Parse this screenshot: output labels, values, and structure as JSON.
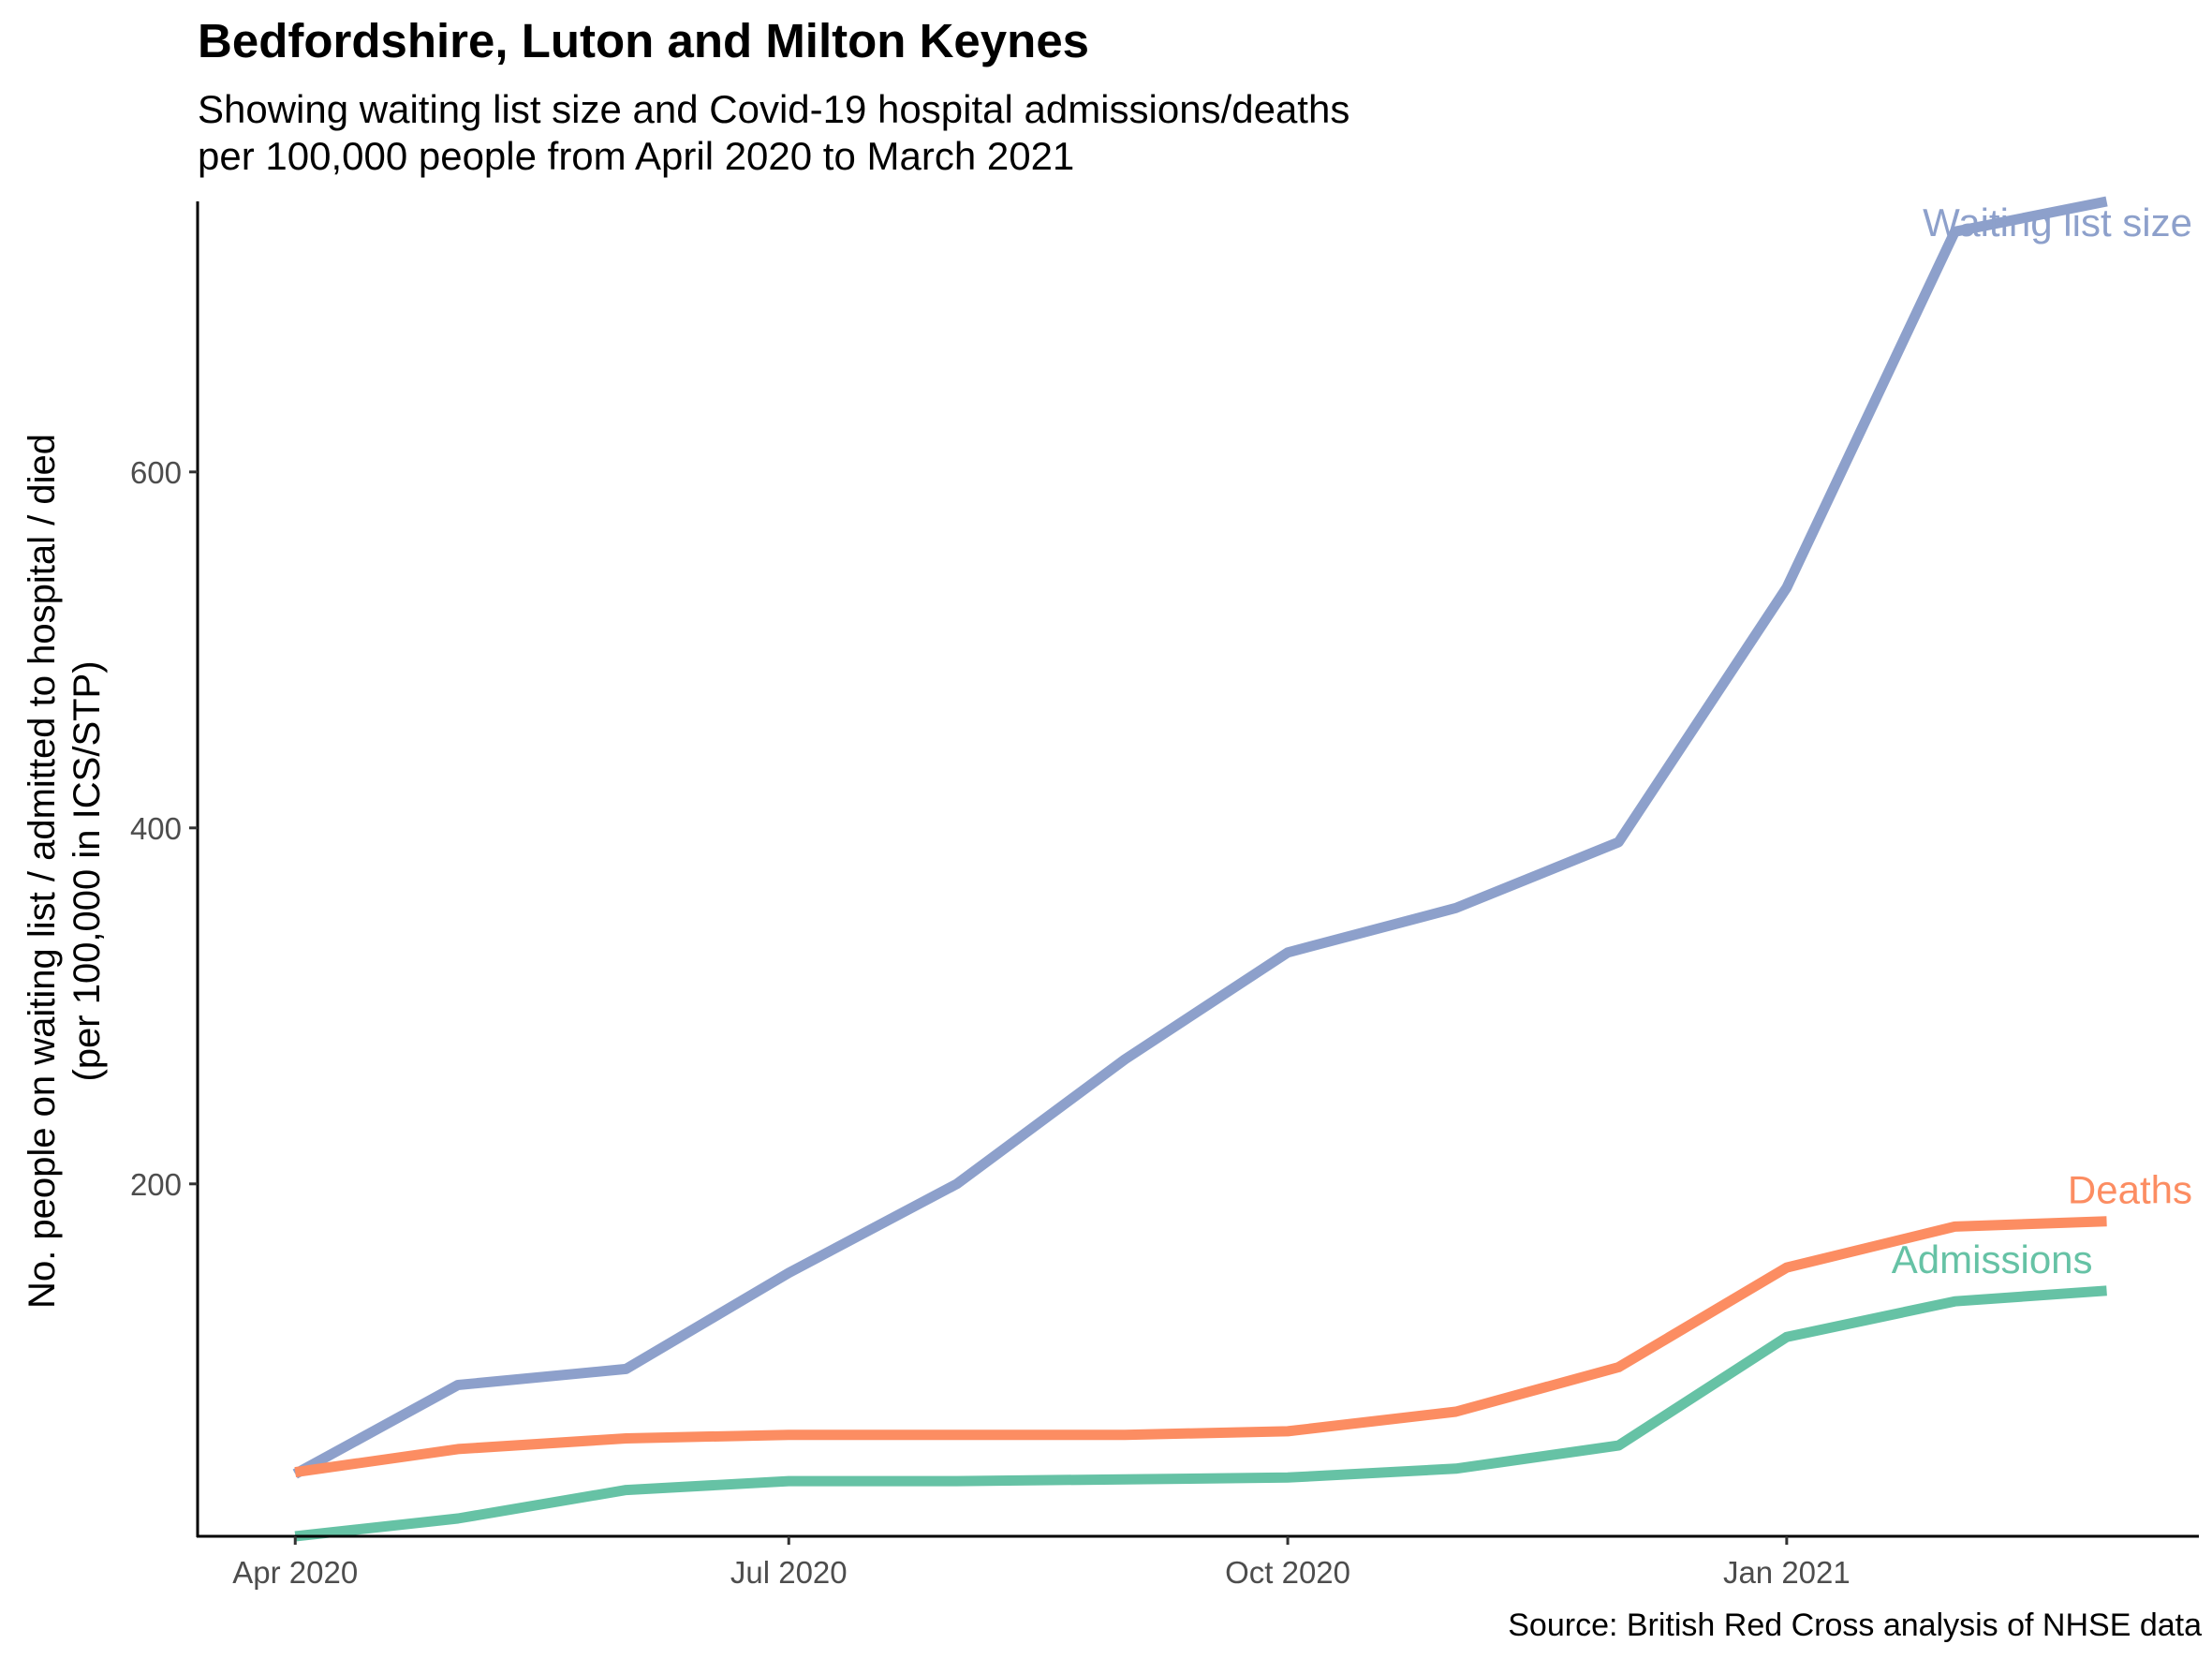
{
  "chart_data": {
    "type": "line",
    "title": "Bedfordshire, Luton and Milton Keynes",
    "subtitle": [
      "Showing waiting list size and Covid-19 hospital admissions/deaths",
      "per 100,000 people from April 2020 to March 2021"
    ],
    "caption": "Source: British Red Cross analysis of NHSE data",
    "ylabel": [
      "No. people on waiting list / admitted to hospital / died",
      "(per 100,000 in ICS/STP)"
    ],
    "xlabel": "",
    "x": [
      "2020-04-01",
      "2020-05-01",
      "2020-06-01",
      "2020-07-01",
      "2020-08-01",
      "2020-09-01",
      "2020-10-01",
      "2020-11-01",
      "2020-12-01",
      "2021-01-01",
      "2021-02-01",
      "2021-03-01"
    ],
    "x_ticks": [
      {
        "date": "2020-04-01",
        "label": "Apr 2020"
      },
      {
        "date": "2020-07-01",
        "label": "Jul 2020"
      },
      {
        "date": "2020-10-01",
        "label": "Oct 2020"
      },
      {
        "date": "2021-01-01",
        "label": "Jan 2021"
      }
    ],
    "y_ticks": [
      200,
      400,
      600
    ],
    "ylim": [
      2,
      752
    ],
    "xlim": [
      "2020-03-14",
      "2021-03-18"
    ],
    "grid": false,
    "legend": "direct labels at line ends",
    "series": [
      {
        "name": "Waiting list size",
        "color": "#8da0cb",
        "values": [
          37,
          87,
          96,
          150,
          200,
          270,
          330,
          355,
          392,
          535,
          735,
          752
        ]
      },
      {
        "name": "Deaths",
        "color": "#fc8d62",
        "values": [
          38,
          51,
          57,
          59,
          59,
          59,
          61,
          72,
          97,
          153,
          176,
          179
        ]
      },
      {
        "name": "Admissions",
        "color": "#66c2a5",
        "values": [
          2,
          12,
          28,
          33,
          33,
          34,
          35,
          40,
          53,
          114,
          134,
          140
        ]
      }
    ]
  }
}
